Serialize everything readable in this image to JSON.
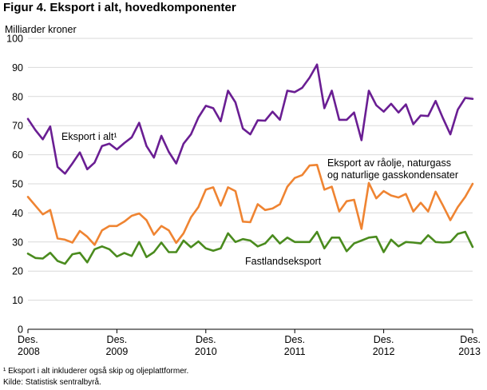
{
  "figure": {
    "title": "Figur 4. Eksport i alt, hovedkomponenter",
    "footnote": "¹ Eksport i alt inkluderer også skip og oljeplattformer.",
    "source": "Kilde: Statistisk sentralbyrå."
  },
  "chart_data": {
    "type": "line",
    "ylabel": "Milliarder kroner",
    "ylim": [
      0,
      100
    ],
    "yticks": [
      0,
      10,
      20,
      30,
      40,
      50,
      60,
      70,
      80,
      90,
      100
    ],
    "xticks": [
      {
        "month": 0,
        "line1": "Des.",
        "line2": "2008"
      },
      {
        "month": 12,
        "line1": "Des.",
        "line2": "2009"
      },
      {
        "month": 24,
        "line1": "Des.",
        "line2": "2010"
      },
      {
        "month": 36,
        "line1": "Des.",
        "line2": "2011"
      },
      {
        "month": 48,
        "line1": "Des.",
        "line2": "2012"
      },
      {
        "month": 60,
        "line1": "Des.",
        "line2": "2013"
      }
    ],
    "x_start": "2008-12",
    "x_end": "2013-12",
    "grid": true,
    "series": [
      {
        "name": "Eksport i alt¹",
        "color": "#6a1e93",
        "values": [
          72.3,
          68.5,
          65.3,
          69.7,
          55.8,
          53.5,
          57.0,
          60.8,
          55.0,
          57.3,
          63.0,
          63.8,
          61.8,
          64.0,
          66.0,
          71.0,
          63.0,
          59.0,
          66.5,
          61.0,
          57.0,
          63.8,
          67.0,
          72.8,
          76.8,
          76.0,
          71.5,
          82.0,
          78.0,
          69.0,
          67.0,
          71.8,
          71.7,
          74.8,
          72.0,
          82.0,
          81.5,
          83.0,
          86.5,
          91.0,
          76.0,
          82.0,
          72.0,
          72.0,
          74.5,
          65.0,
          82.0,
          77.0,
          74.8,
          77.5,
          74.5,
          77.3,
          70.5,
          73.5,
          73.3,
          78.5,
          72.5,
          67.0,
          75.5,
          79.5,
          79.2
        ]
      },
      {
        "name": "Eksport av råolje, naturgass og naturlige gasskondensater",
        "label_lines": [
          "Eksport av råolje, naturgass",
          "og naturlige gasskondensater"
        ],
        "color": "#ef8432",
        "values": [
          45.5,
          42.5,
          39.5,
          41.0,
          31.2,
          30.8,
          29.8,
          33.8,
          31.8,
          29.0,
          34.0,
          35.5,
          35.5,
          37.0,
          39.0,
          39.8,
          37.5,
          32.5,
          35.5,
          34.0,
          29.7,
          33.0,
          38.5,
          42.0,
          48.0,
          48.8,
          42.5,
          48.8,
          47.5,
          37.0,
          36.8,
          43.0,
          41.0,
          41.5,
          43.0,
          49.0,
          52.0,
          53.0,
          56.3,
          56.5,
          48.0,
          49.0,
          40.5,
          44.0,
          44.5,
          34.5,
          50.3,
          45.0,
          47.5,
          46.0,
          45.3,
          46.5,
          40.5,
          43.5,
          40.5,
          47.3,
          42.5,
          37.5,
          42.0,
          45.5,
          50.0
        ]
      },
      {
        "name": "Fastlandseksport",
        "color": "#4a8b1e",
        "values": [
          26.0,
          24.5,
          24.3,
          26.3,
          23.5,
          22.5,
          25.8,
          26.3,
          23.0,
          27.5,
          28.5,
          27.5,
          25.0,
          26.2,
          25.2,
          30.0,
          24.8,
          26.5,
          29.8,
          26.5,
          26.5,
          30.5,
          28.2,
          30.2,
          27.8,
          27.0,
          27.8,
          33.0,
          30.0,
          31.0,
          30.5,
          28.5,
          29.5,
          32.3,
          29.5,
          31.5,
          30.0,
          30.0,
          30.0,
          33.5,
          27.8,
          31.5,
          31.5,
          26.8,
          29.5,
          30.5,
          31.5,
          31.8,
          26.5,
          30.8,
          28.5,
          30.0,
          29.8,
          29.5,
          32.3,
          30.0,
          29.8,
          30.0,
          32.8,
          33.5,
          28.3
        ]
      }
    ],
    "annotations": [
      {
        "text": "Eksport i alt¹",
        "series": 0
      },
      {
        "text": "Fastlandseksport",
        "series": 2
      }
    ]
  }
}
